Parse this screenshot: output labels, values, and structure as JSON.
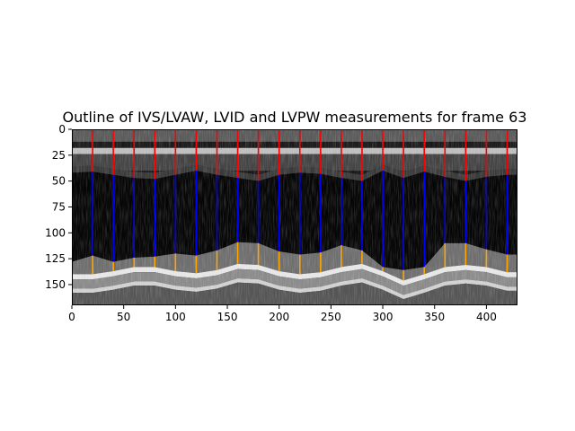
{
  "chart_data": {
    "type": "image-with-lines",
    "title": "Outline of IVS/LVAW, LVID and LVPW measurements for frame 63",
    "xlabel": "",
    "ylabel": "",
    "xlim": [
      0,
      430
    ],
    "ylim": [
      170,
      0
    ],
    "x_ticks": [
      0,
      50,
      100,
      150,
      200,
      250,
      300,
      350,
      400
    ],
    "y_ticks": [
      0,
      25,
      50,
      75,
      100,
      125,
      150
    ],
    "colors": {
      "ivs_lvaw": "#ff0000",
      "lvid": "#0000ff",
      "lvpw": "#ffa500"
    },
    "measurements": [
      {
        "x": 0,
        "ivs_top": 0,
        "ivs_bottom": 42,
        "lvid_bottom": 128,
        "lvpw_bottom": 140
      },
      {
        "x": 20,
        "ivs_top": 0,
        "ivs_bottom": 41,
        "lvid_bottom": 122,
        "lvpw_bottom": 140
      },
      {
        "x": 40,
        "ivs_top": 0,
        "ivs_bottom": 44,
        "lvid_bottom": 128,
        "lvpw_bottom": 137
      },
      {
        "x": 60,
        "ivs_top": 0,
        "ivs_bottom": 47,
        "lvid_bottom": 124,
        "lvpw_bottom": 133
      },
      {
        "x": 80,
        "ivs_top": 0,
        "ivs_bottom": 48,
        "lvid_bottom": 123,
        "lvpw_bottom": 133
      },
      {
        "x": 100,
        "ivs_top": 0,
        "ivs_bottom": 44,
        "lvid_bottom": 120,
        "lvpw_bottom": 137
      },
      {
        "x": 120,
        "ivs_top": 0,
        "ivs_bottom": 40,
        "lvid_bottom": 122,
        "lvpw_bottom": 139
      },
      {
        "x": 140,
        "ivs_top": 0,
        "ivs_bottom": 44,
        "lvid_bottom": 117,
        "lvpw_bottom": 136
      },
      {
        "x": 160,
        "ivs_top": 0,
        "ivs_bottom": 47,
        "lvid_bottom": 109,
        "lvpw_bottom": 130
      },
      {
        "x": 180,
        "ivs_top": 0,
        "ivs_bottom": 50,
        "lvid_bottom": 110,
        "lvpw_bottom": 131
      },
      {
        "x": 200,
        "ivs_top": 0,
        "ivs_bottom": 44,
        "lvid_bottom": 118,
        "lvpw_bottom": 137
      },
      {
        "x": 220,
        "ivs_top": 0,
        "ivs_bottom": 42,
        "lvid_bottom": 121,
        "lvpw_bottom": 140
      },
      {
        "x": 240,
        "ivs_top": 0,
        "ivs_bottom": 43,
        "lvid_bottom": 119,
        "lvpw_bottom": 138
      },
      {
        "x": 260,
        "ivs_top": 0,
        "ivs_bottom": 47,
        "lvid_bottom": 112,
        "lvpw_bottom": 133
      },
      {
        "x": 280,
        "ivs_top": 0,
        "ivs_bottom": 50,
        "lvid_bottom": 117,
        "lvpw_bottom": 130
      },
      {
        "x": 300,
        "ivs_top": 0,
        "ivs_bottom": 40,
        "lvid_bottom": 133,
        "lvpw_bottom": 137
      },
      {
        "x": 320,
        "ivs_top": 0,
        "ivs_bottom": 47,
        "lvid_bottom": 136,
        "lvpw_bottom": 146
      },
      {
        "x": 340,
        "ivs_top": 0,
        "ivs_bottom": 41,
        "lvid_bottom": 133,
        "lvpw_bottom": 140
      },
      {
        "x": 360,
        "ivs_top": 0,
        "ivs_bottom": 46,
        "lvid_bottom": 110,
        "lvpw_bottom": 133
      },
      {
        "x": 380,
        "ivs_top": 0,
        "ivs_bottom": 50,
        "lvid_bottom": 110,
        "lvpw_bottom": 131
      },
      {
        "x": 400,
        "ivs_top": 0,
        "ivs_bottom": 46,
        "lvid_bottom": 116,
        "lvpw_bottom": 133
      },
      {
        "x": 420,
        "ivs_top": 0,
        "ivs_bottom": 44,
        "lvid_bottom": 121,
        "lvpw_bottom": 138
      }
    ]
  }
}
